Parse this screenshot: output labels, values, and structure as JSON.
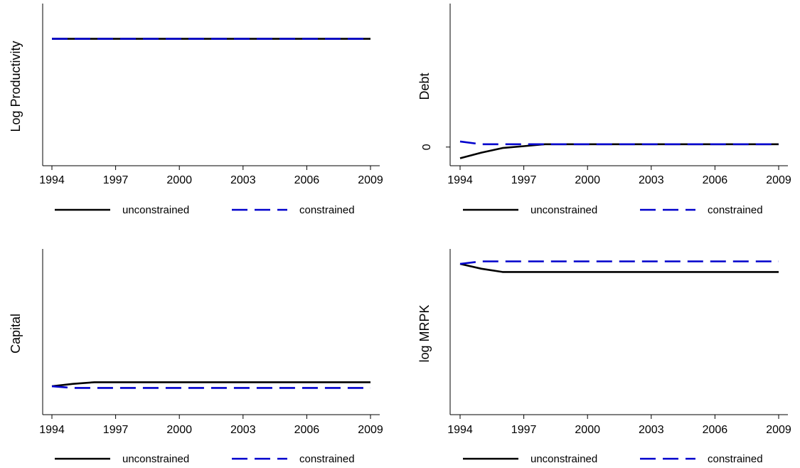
{
  "legend": {
    "unconstrained_label": "unconstrained",
    "constrained_label": "constrained"
  },
  "colors": {
    "unconstrained": "#000000",
    "constrained": "#0000cc",
    "axis": "#000000"
  },
  "chart_data": [
    {
      "type": "line",
      "ylabel": "Log Productivity",
      "xlabel": "",
      "x": [
        1994,
        1995,
        1996,
        1997,
        1998,
        1999,
        2000,
        2001,
        2002,
        2003,
        2004,
        2005,
        2006,
        2007,
        2008,
        2009
      ],
      "xticks": [
        "1994",
        "1997",
        "2000",
        "2003",
        "2006",
        "2009"
      ],
      "yticks": [],
      "ylim": [
        0,
        1
      ],
      "series": [
        {
          "name": "unconstrained",
          "style": "solid",
          "values": [
            0.8,
            0.8,
            0.8,
            0.8,
            0.8,
            0.8,
            0.8,
            0.8,
            0.8,
            0.8,
            0.8,
            0.8,
            0.8,
            0.8,
            0.8,
            0.8
          ]
        },
        {
          "name": "constrained",
          "style": "dashed",
          "values": [
            0.8,
            0.8,
            0.8,
            0.8,
            0.8,
            0.8,
            0.8,
            0.8,
            0.8,
            0.8,
            0.8,
            0.8,
            0.8,
            0.8,
            0.8,
            0.8
          ]
        }
      ],
      "legend_position": "bottom"
    },
    {
      "type": "line",
      "ylabel": "Debt",
      "xlabel": "",
      "x": [
        1994,
        1995,
        1996,
        1997,
        1998,
        1999,
        2000,
        2001,
        2002,
        2003,
        2004,
        2005,
        2006,
        2007,
        2008,
        2009
      ],
      "xticks": [
        "1994",
        "1997",
        "2000",
        "2003",
        "2006",
        "2009"
      ],
      "yticks": [
        {
          "value": 0,
          "label": "0"
        }
      ],
      "ylim": [
        -0.2,
        1.5
      ],
      "series": [
        {
          "name": "unconstrained",
          "style": "solid",
          "values": [
            -0.12,
            -0.06,
            -0.01,
            0.01,
            0.03,
            0.03,
            0.03,
            0.03,
            0.03,
            0.03,
            0.03,
            0.03,
            0.03,
            0.03,
            0.03,
            0.03
          ]
        },
        {
          "name": "constrained",
          "style": "dashed",
          "values": [
            0.06,
            0.03,
            0.03,
            0.03,
            0.03,
            0.03,
            0.03,
            0.03,
            0.03,
            0.03,
            0.03,
            0.03,
            0.03,
            0.03,
            0.03,
            0.03
          ]
        }
      ],
      "legend_position": "bottom"
    },
    {
      "type": "line",
      "ylabel": "Capital",
      "xlabel": "",
      "x": [
        1994,
        1995,
        1996,
        1997,
        1998,
        1999,
        2000,
        2001,
        2002,
        2003,
        2004,
        2005,
        2006,
        2007,
        2008,
        2009
      ],
      "xticks": [
        "1994",
        "1997",
        "2000",
        "2003",
        "2006",
        "2009"
      ],
      "yticks": [],
      "ylim": [
        0,
        1
      ],
      "series": [
        {
          "name": "unconstrained",
          "style": "solid",
          "values": [
            0.175,
            0.19,
            0.2,
            0.2,
            0.2,
            0.2,
            0.2,
            0.2,
            0.2,
            0.2,
            0.2,
            0.2,
            0.2,
            0.2,
            0.2,
            0.2
          ]
        },
        {
          "name": "constrained",
          "style": "dashed",
          "values": [
            0.175,
            0.165,
            0.165,
            0.165,
            0.165,
            0.165,
            0.165,
            0.165,
            0.165,
            0.165,
            0.165,
            0.165,
            0.165,
            0.165,
            0.165,
            0.165
          ]
        }
      ],
      "legend_position": "bottom"
    },
    {
      "type": "line",
      "ylabel": "log MRPK",
      "xlabel": "",
      "x": [
        1994,
        1995,
        1996,
        1997,
        1998,
        1999,
        2000,
        2001,
        2002,
        2003,
        2004,
        2005,
        2006,
        2007,
        2008,
        2009
      ],
      "xticks": [
        "1994",
        "1997",
        "2000",
        "2003",
        "2006",
        "2009"
      ],
      "yticks": [],
      "ylim": [
        0,
        1
      ],
      "series": [
        {
          "name": "unconstrained",
          "style": "solid",
          "values": [
            0.93,
            0.9,
            0.88,
            0.88,
            0.88,
            0.88,
            0.88,
            0.88,
            0.88,
            0.88,
            0.88,
            0.88,
            0.88,
            0.88,
            0.88,
            0.88
          ]
        },
        {
          "name": "constrained",
          "style": "dashed",
          "values": [
            0.93,
            0.945,
            0.945,
            0.945,
            0.945,
            0.945,
            0.945,
            0.945,
            0.945,
            0.945,
            0.945,
            0.945,
            0.945,
            0.945,
            0.945,
            0.945
          ]
        }
      ],
      "legend_position": "bottom"
    }
  ]
}
